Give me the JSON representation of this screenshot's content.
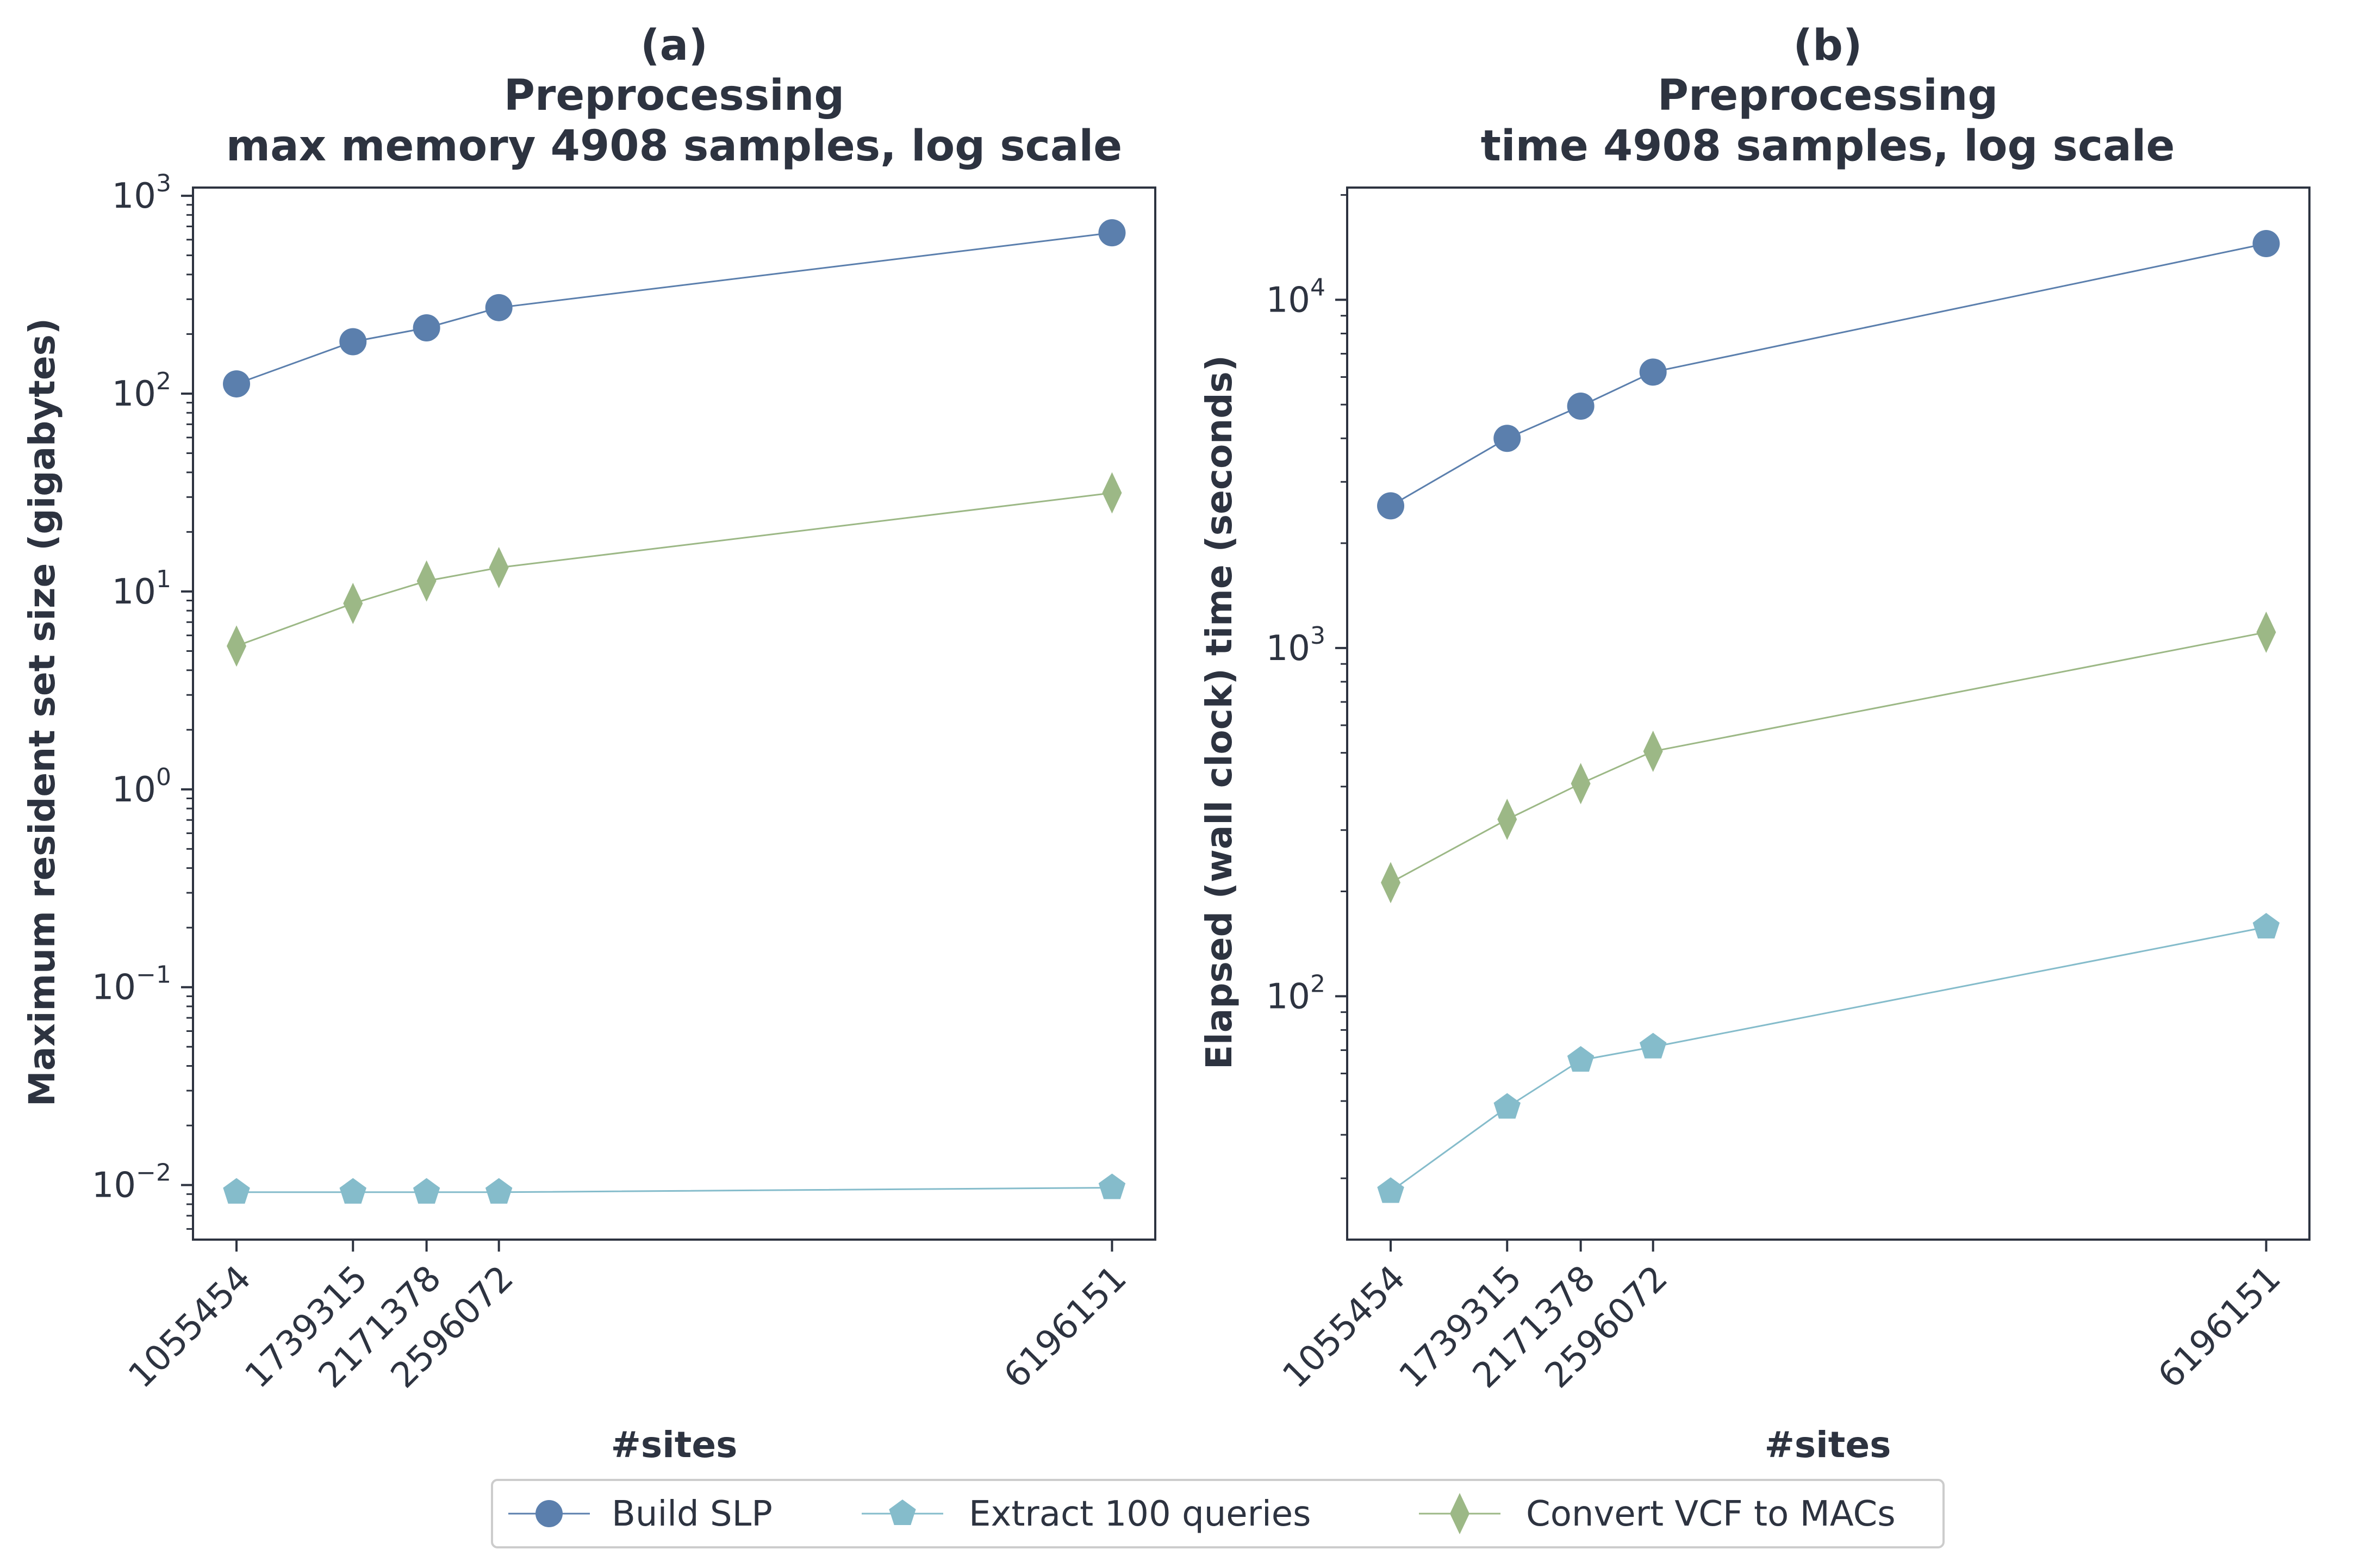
{
  "colors": {
    "build_slp": "#5b7fad",
    "extract_queries": "#85bccb",
    "convert_vcf": "#9cb886",
    "axis": "#2d3340"
  },
  "legend": {
    "placement": "bottom-center",
    "items": [
      {
        "label": "Build SLP",
        "marker": "circle",
        "color": "#5b7fad"
      },
      {
        "label": "Extract 100 queries",
        "marker": "pentagon",
        "color": "#85bccb"
      },
      {
        "label": "Convert VCF to MACs",
        "marker": "diamond",
        "color": "#9cb886"
      }
    ]
  },
  "chart_data": [
    {
      "type": "line",
      "title_lines": [
        "(a)",
        "Preprocessing",
        "max memory 4908 samples, log scale"
      ],
      "xlabel": "#sites",
      "ylabel": "Maximum resident set size (gigabytes)",
      "yscale": "log",
      "x": [
        1055454,
        1739315,
        2171378,
        2596072,
        6196151
      ],
      "x_tick_labels": [
        "1055454",
        "1739315",
        "2171378",
        "2596072",
        "6196151"
      ],
      "xlim": [
        800000,
        6450000
      ],
      "ylim": [
        0.0053,
        1100
      ],
      "y_ticks": [
        {
          "value": 0.01,
          "base": "10",
          "exp": "−2"
        },
        {
          "value": 0.1,
          "base": "10",
          "exp": "−1"
        },
        {
          "value": 1,
          "base": "10",
          "exp": "0"
        },
        {
          "value": 10,
          "base": "10",
          "exp": "1"
        },
        {
          "value": 100,
          "base": "10",
          "exp": "2"
        },
        {
          "value": 1000,
          "base": "10",
          "exp": "3"
        }
      ],
      "grid": false,
      "series": [
        {
          "name": "Build SLP",
          "marker": "circle",
          "color": "#5b7fad",
          "values": [
            112,
            183,
            215,
            272,
            650
          ]
        },
        {
          "name": "Extract 100 queries",
          "marker": "pentagon",
          "color": "#85bccb",
          "values": [
            0.0092,
            0.0092,
            0.0092,
            0.0092,
            0.0097
          ]
        },
        {
          "name": "Convert VCF to MACs",
          "marker": "diamond",
          "color": "#9cb886",
          "values": [
            5.3,
            8.7,
            11.3,
            13.2,
            31.5
          ]
        }
      ]
    },
    {
      "type": "line",
      "title_lines": [
        "(b)",
        "Preprocessing",
        "time 4908 samples, log scale"
      ],
      "xlabel": "#sites",
      "ylabel": "Elapsed (wall clock) time (seconds)",
      "yscale": "log",
      "x": [
        1055454,
        1739315,
        2171378,
        2596072,
        6196151
      ],
      "x_tick_labels": [
        "1055454",
        "1739315",
        "2171378",
        "2596072",
        "6196151"
      ],
      "xlim": [
        800000,
        6450000
      ],
      "ylim": [
        20,
        21000
      ],
      "y_ticks": [
        {
          "value": 100,
          "base": "10",
          "exp": "2"
        },
        {
          "value": 1000,
          "base": "10",
          "exp": "3"
        },
        {
          "value": 10000,
          "base": "10",
          "exp": "4"
        }
      ],
      "grid": false,
      "series": [
        {
          "name": "Build SLP",
          "marker": "circle",
          "color": "#5b7fad",
          "values": [
            2560,
            4000,
            4950,
            6200,
            14500
          ]
        },
        {
          "name": "Extract 100 queries",
          "marker": "pentagon",
          "color": "#85bccb",
          "values": [
            27.5,
            48,
            65.5,
            71.5,
            158
          ]
        },
        {
          "name": "Convert VCF to MACs",
          "marker": "diamond",
          "color": "#9cb886",
          "values": [
            212,
            322,
            408,
            505,
            1110
          ]
        }
      ]
    }
  ]
}
